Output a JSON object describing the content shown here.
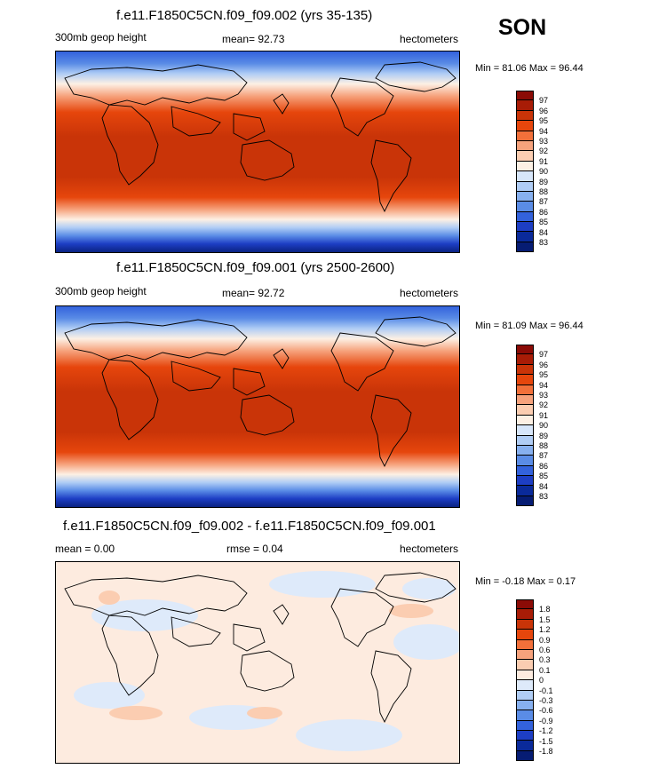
{
  "season": "SON",
  "panels": [
    {
      "title": "f.e11.F1850C5CN.f09_f09.002 (yrs 35-135)",
      "left_label": "300mb geop height",
      "center_label": "mean=  92.73",
      "right_label": "hectometers",
      "minmax": "Min =  81.06 Max =  96.44",
      "colorbar": [
        "97",
        "96",
        "95",
        "94",
        "93",
        "92",
        "91",
        "90",
        "89",
        "88",
        "87",
        "86",
        "85",
        "84",
        "83"
      ]
    },
    {
      "title": "f.e11.F1850C5CN.f09_f09.001 (yrs 2500-2600)",
      "left_label": "300mb geop height",
      "center_label": "mean=  92.72",
      "right_label": "hectometers",
      "minmax": "Min =  81.09 Max =  96.44",
      "colorbar": [
        "97",
        "96",
        "95",
        "94",
        "93",
        "92",
        "91",
        "90",
        "89",
        "88",
        "87",
        "86",
        "85",
        "84",
        "83"
      ]
    },
    {
      "title": "f.e11.F1850C5CN.f09_f09.002 - f.e11.F1850C5CN.f09_f09.001",
      "left_label": "mean =   0.00",
      "center_label": "rmse =   0.04",
      "right_label": "hectometers",
      "minmax": "Min =  -0.18 Max =   0.17",
      "colorbar": [
        "1.8",
        "1.5",
        "1.2",
        "0.9",
        "0.6",
        "0.3",
        "0.1",
        "0",
        "-0.1",
        "-0.3",
        "-0.6",
        "-0.9",
        "-1.2",
        "-1.5",
        "-1.8"
      ]
    }
  ],
  "colors": {
    "abs_scale": [
      "#8b0b06",
      "#a81c06",
      "#c93408",
      "#e6460c",
      "#f2703a",
      "#f6a27c",
      "#fbcdb1",
      "#fdf0e4",
      "#d7e6fa",
      "#b0cdf5",
      "#87b0ef",
      "#5a8ce6",
      "#3362dc",
      "#1d3ec4",
      "#0a2a9a",
      "#061c73"
    ],
    "diff_scale": [
      "#8b0b06",
      "#a81c06",
      "#c93408",
      "#e6460c",
      "#f2703a",
      "#f6a27c",
      "#fbcdb1",
      "#fdebdf",
      "#deeafa",
      "#b0cdf5",
      "#87b0ef",
      "#5a8ce6",
      "#3362dc",
      "#1d3ec4",
      "#0a2a9a",
      "#061c73"
    ]
  }
}
